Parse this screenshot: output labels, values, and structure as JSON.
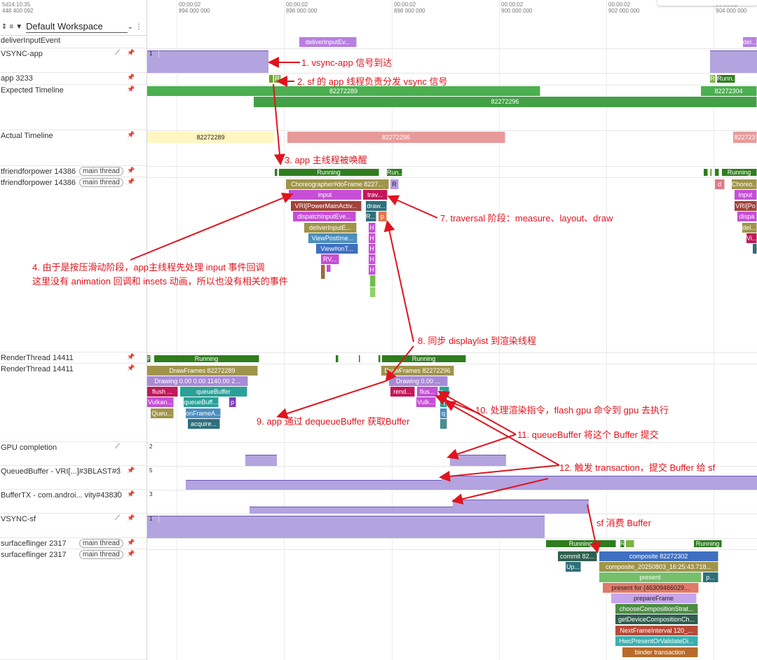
{
  "header": {
    "clock_top": "5d14:10:35",
    "clock_bottom": "448 400 092",
    "workspace": "Default Workspace",
    "icons": [
      "collapse-icon",
      "list-icon",
      "filter-icon",
      "chevron-down-icon",
      "more-icon"
    ]
  },
  "ticks": [
    {
      "a": "00:00:02",
      "b": "894 000 000"
    },
    {
      "a": "00:00:02",
      "b": "896 000 000"
    },
    {
      "a": "00:00:02",
      "b": "898 000 000"
    },
    {
      "a": "00:00:02",
      "b": "900 000 000"
    },
    {
      "a": "00:00:02",
      "b": "902 000 000"
    },
    {
      "a": "00:00:02",
      "b": "904 000 000"
    }
  ],
  "tracks": [
    {
      "label": "deliverInputEvent",
      "pin": false
    },
    {
      "label": "VSYNC-app",
      "pin": true,
      "chart": true
    },
    {
      "label": "app 3233",
      "pin": true
    },
    {
      "label": "Expected Timeline",
      "pin": true
    },
    {
      "label": "Actual Timeline",
      "pin": true
    },
    {
      "label": "tfriendforpower 14386",
      "badge": "main thread",
      "pin": true
    },
    {
      "label": "tfriendforpower 14386",
      "badge": "main thread",
      "pin": true
    },
    {
      "label": "RenderThread 14411",
      "pin": true
    },
    {
      "label": "RenderThread 14411",
      "pin": true
    },
    {
      "label": "GPU completion",
      "pin": false,
      "chart": true
    },
    {
      "label": "QueuedBuffer - VRI[...]#3BLAST#3",
      "pin": true,
      "chart": true
    },
    {
      "label": "BufferTX - com.androi... vity#43830",
      "pin": true,
      "chart": true
    },
    {
      "label": "VSYNC-sf",
      "pin": true,
      "chart": true
    },
    {
      "label": "surfaceflinger 2317",
      "badge": "main thread",
      "pin": true
    },
    {
      "label": "surfaceflinger 2317",
      "badge": "main thread",
      "pin": true
    }
  ],
  "counters": {
    "vsync_app": "1",
    "gpu": "2",
    "queued": "5",
    "buffertx": "3",
    "vsync_sf": "1"
  },
  "slices": {
    "deliver1": "deliverInputEv...",
    "deliver2": "del...",
    "app_r1": "R",
    "app_r2": "R",
    "app_run": "Runn...",
    "exp1": "82272289",
    "exp2": "82272296",
    "exp3": "82272304",
    "act1": "82272289",
    "act2": "82272296",
    "act3": "822723",
    "main_running": "Running",
    "main_run2": "Run...",
    "main_running_r": "Running",
    "choreo": "Choreographer#doFrame 8227...",
    "choreo_r": "Choreo...",
    "d_r": "d",
    "r_slice": "R",
    "input": "input",
    "input_r": "input",
    "trav": "trav...",
    "vri": "VRI[PowerMainActiv...",
    "vri_r": "VRI[Po",
    "draw": "draw...",
    "dispatch": "dispatchInputEve...",
    "dispa_r": "dispa",
    "r2": "R...",
    "p1": "p",
    "deliverIE": "deliverInputE...",
    "del_r": "del...",
    "viewpost": "ViewPostIme...",
    "vi_r": "Vi...",
    "viewon": "View#onT...",
    "rv": "RV...",
    "h": "H",
    "rt_r": "R...",
    "rt_running": "Running",
    "rt_running2": "Running",
    "df1": "DrawFrames 82272289",
    "df2": "DrawFrames 82272296",
    "drawing1": "Drawing  0.00  0.00 1140.00 2...",
    "drawing2": "Drawing  0.00 ...",
    "flush1": "flush ...",
    "queueBuffer": "queueBuffer",
    "rend": "rend...",
    "flus": "flus...",
    "q1": "q...",
    "vulkan1": "Vulkan...",
    "queueBuff2": "queueBuff...",
    "p2": "p",
    "vulk": "Vulk...",
    "q2": "q",
    "queu": "Queu...",
    "onframe": "onFrameA...",
    "q3": "q",
    "acquire": "acquire...",
    "sf_running": "Running",
    "sf_r": "R",
    "sf_running2": "Running",
    "commit": "commit 82...",
    "composite": "composite 82272302",
    "up": "Up...",
    "composite2": "composite_20250803_16:25:43.718...",
    "present": "present",
    "p3": "p...",
    "presentfor": "present for  (46309466029...",
    "prepareFrame": "prepareFrame",
    "chooseComp": "chooseCompositionStrat...",
    "getDevice": "getDeviceCompositionCh...",
    "nextFrame": "NextFrameInterval 120_...",
    "hwcPresent": "HwcPresentOrValidateDi...",
    "binder": "binder transaction"
  },
  "annotations": [
    "1. vsync-app 信号到达",
    "2. sf 的 app 线程负责分发 vsync 信号",
    "3. app 主线程被唤醒",
    "4. 由于是按压滑动阶段，app主线程先处理 input 事件回调",
    "这里没有 animation 回调和 insets 动画，所以也没有相关的事件",
    "7. traversal 阶段：measure、layout、draw",
    "8. 同步 displaylist 到渲染线程",
    "9. app 通过 dequeueBuffer 获取Buffer",
    "10. 处理渲染指令，flash gpu 命令到 gpu 去执行",
    "11. queueBuffer 将这个 Buffer 提交",
    "12. 触发 transaction，提交 Buffer 给 sf",
    "sf 消费 Buffer"
  ],
  "colors": {
    "accent_red": "#e0141e",
    "running": "#2f7d1f",
    "expected": "#4caf50",
    "actual_yellow": "#fff6c2",
    "actual_red": "#e89a9a",
    "counter": "#b3a3df"
  }
}
